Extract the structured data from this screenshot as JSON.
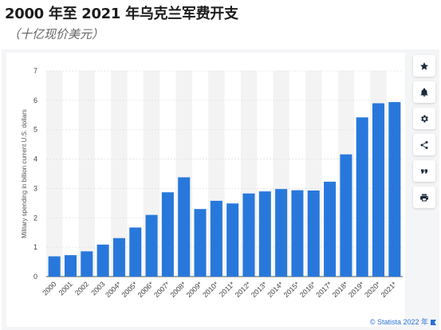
{
  "header": {
    "title": "2000 年至 2021 年乌克兰军费开支",
    "subtitle": "（十亿现价美元）"
  },
  "toolbar": {
    "items": [
      {
        "name": "favorite-button",
        "icon": "star-icon"
      },
      {
        "name": "notification-button",
        "icon": "bell-icon"
      },
      {
        "name": "settings-button",
        "icon": "gear-icon"
      },
      {
        "name": "share-button",
        "icon": "share-icon"
      },
      {
        "name": "cite-button",
        "icon": "quote-icon"
      },
      {
        "name": "print-button",
        "icon": "printer-icon"
      }
    ]
  },
  "source": {
    "text": "© Statista 2022 年"
  },
  "colors": {
    "bar": "#2878dc",
    "band": "#f3f3f3",
    "panel": "#f4f5f7"
  },
  "chart_data": {
    "type": "bar",
    "categories": [
      "2000",
      "2001",
      "2002",
      "2003",
      "2004*",
      "2005*",
      "2006*",
      "2007*",
      "2008*",
      "2009*",
      "2010*",
      "2011*",
      "2012*",
      "2013*",
      "2014*",
      "2015*",
      "2016*",
      "2017*",
      "2018*",
      "2019*",
      "2020*",
      "2021*"
    ],
    "values": [
      0.69,
      0.73,
      0.86,
      1.09,
      1.31,
      1.67,
      2.1,
      2.87,
      3.38,
      2.3,
      2.58,
      2.49,
      2.83,
      2.9,
      2.98,
      2.94,
      2.93,
      3.23,
      4.16,
      5.42,
      5.9,
      5.94
    ],
    "ylabel": "Military spending in billion current U.S. dollars",
    "xlabel": "",
    "ylim": [
      0,
      7
    ],
    "yticks": [
      0,
      1,
      2,
      3,
      4,
      5,
      6,
      7
    ],
    "grid": true
  }
}
